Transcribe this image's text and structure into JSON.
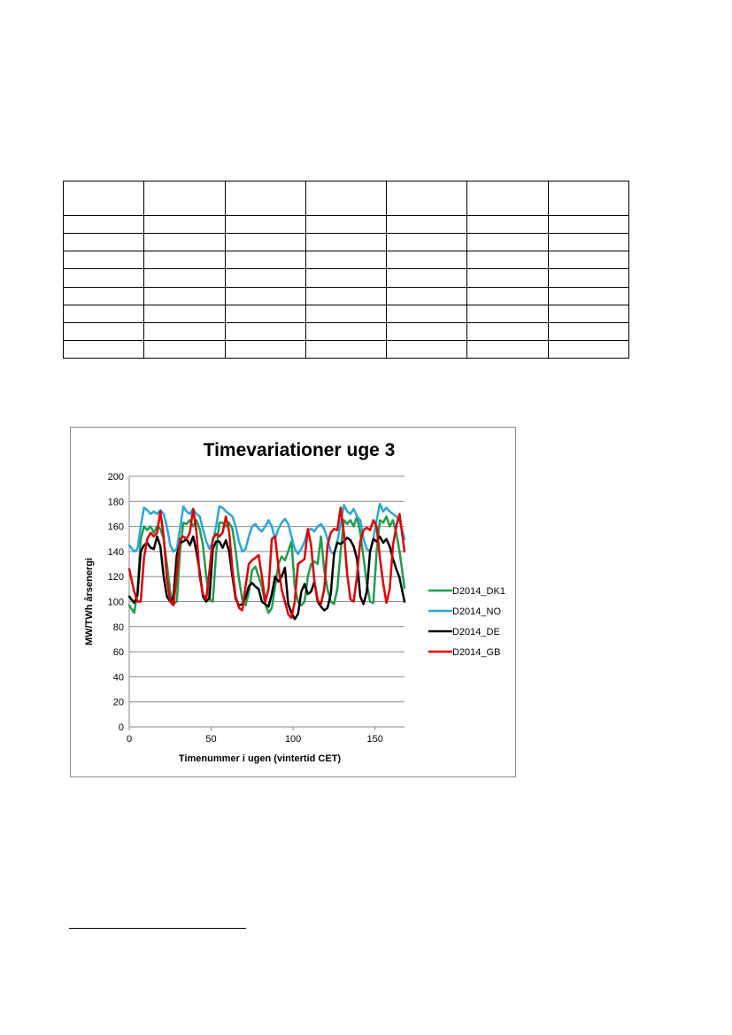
{
  "table": {
    "columns": 7,
    "body_rows": 8
  },
  "chart_data": {
    "type": "line",
    "title": "Timevariationer uge 3",
    "xlabel": "Timenummer i ugen (vintertid CET)",
    "ylabel": "MW/TWh årsenergi",
    "xlim": [
      0,
      168
    ],
    "ylim": [
      0,
      200
    ],
    "xticks": [
      0,
      50,
      100,
      150
    ],
    "yticks": [
      0,
      20,
      40,
      60,
      80,
      100,
      120,
      140,
      160,
      180,
      200
    ],
    "grid": "horizontal",
    "legend_position": "right",
    "series": [
      {
        "name": "D2014_DK1",
        "color": "#1e9e4a",
        "x": [
          0,
          3,
          5,
          7,
          9,
          11,
          13,
          15,
          17,
          19,
          21,
          23,
          25,
          27,
          29,
          31,
          33,
          35,
          37,
          39,
          41,
          43,
          45,
          47,
          49,
          51,
          53,
          55,
          57,
          59,
          61,
          63,
          65,
          67,
          69,
          71,
          73,
          75,
          77,
          79,
          81,
          83,
          85,
          87,
          89,
          91,
          93,
          95,
          97,
          99,
          101,
          103,
          105,
          107,
          109,
          111,
          113,
          115,
          117,
          119,
          121,
          123,
          125,
          127,
          129,
          131,
          133,
          135,
          137,
          139,
          141,
          143,
          145,
          147,
          149,
          151,
          153,
          155,
          157,
          159,
          161,
          163,
          165,
          168
        ],
        "y": [
          97,
          91,
          108,
          150,
          160,
          157,
          160,
          155,
          160,
          158,
          150,
          130,
          108,
          98,
          100,
          140,
          163,
          162,
          165,
          160,
          165,
          158,
          145,
          120,
          102,
          100,
          138,
          163,
          163,
          160,
          163,
          158,
          140,
          118,
          102,
          97,
          107,
          125,
          128,
          120,
          112,
          98,
          91,
          95,
          112,
          130,
          136,
          133,
          140,
          148,
          112,
          100,
          97,
          100,
          120,
          130,
          132,
          130,
          152,
          125,
          110,
          100,
          98,
          110,
          140,
          165,
          162,
          165,
          160,
          168,
          155,
          135,
          115,
          100,
          99,
          140,
          165,
          163,
          168,
          160,
          165,
          155,
          140,
          111
        ]
      },
      {
        "name": "D2014_NO",
        "color": "#2aa6dc",
        "x": [
          0,
          3,
          5,
          7,
          9,
          11,
          13,
          15,
          17,
          19,
          21,
          23,
          25,
          27,
          29,
          31,
          33,
          35,
          37,
          39,
          41,
          43,
          45,
          47,
          49,
          51,
          53,
          55,
          57,
          59,
          61,
          63,
          65,
          67,
          69,
          71,
          73,
          75,
          77,
          79,
          81,
          83,
          85,
          87,
          89,
          91,
          93,
          95,
          97,
          99,
          101,
          103,
          105,
          107,
          109,
          111,
          113,
          115,
          117,
          119,
          121,
          123,
          125,
          127,
          129,
          131,
          133,
          135,
          137,
          139,
          141,
          143,
          145,
          147,
          149,
          151,
          153,
          155,
          157,
          159,
          161,
          163,
          165,
          168
        ],
        "y": [
          145,
          140,
          142,
          160,
          175,
          173,
          170,
          172,
          170,
          173,
          170,
          160,
          145,
          140,
          142,
          158,
          176,
          172,
          170,
          174,
          170,
          168,
          158,
          148,
          142,
          148,
          160,
          176,
          175,
          172,
          170,
          168,
          160,
          148,
          140,
          142,
          152,
          160,
          162,
          158,
          156,
          160,
          165,
          160,
          150,
          158,
          163,
          166,
          162,
          152,
          142,
          138,
          142,
          148,
          157,
          158,
          156,
          160,
          162,
          158,
          150,
          140,
          138,
          148,
          162,
          177,
          172,
          170,
          174,
          168,
          165,
          150,
          142,
          140,
          150,
          165,
          178,
          172,
          175,
          172,
          170,
          168,
          165,
          150
        ]
      },
      {
        "name": "D2014_DE",
        "color": "#000000",
        "x": [
          0,
          3,
          5,
          7,
          9,
          11,
          13,
          15,
          17,
          19,
          21,
          23,
          25,
          27,
          29,
          31,
          33,
          35,
          37,
          39,
          41,
          43,
          45,
          47,
          49,
          51,
          53,
          55,
          57,
          59,
          61,
          63,
          65,
          67,
          69,
          71,
          73,
          75,
          77,
          79,
          81,
          83,
          85,
          87,
          89,
          91,
          93,
          95,
          97,
          99,
          101,
          103,
          105,
          107,
          109,
          111,
          113,
          115,
          117,
          119,
          121,
          123,
          125,
          127,
          129,
          131,
          133,
          135,
          137,
          139,
          141,
          143,
          145,
          147,
          149,
          151,
          153,
          155,
          157,
          159,
          161,
          163,
          165,
          168
        ],
        "y": [
          104,
          99,
          105,
          140,
          145,
          147,
          143,
          142,
          152,
          144,
          120,
          104,
          100,
          104,
          137,
          147,
          148,
          150,
          145,
          152,
          140,
          124,
          104,
          100,
          103,
          142,
          148,
          148,
          143,
          149,
          140,
          120,
          102,
          97,
          98,
          103,
          112,
          115,
          112,
          110,
          100,
          98,
          96,
          106,
          120,
          116,
          120,
          127,
          98,
          91,
          86,
          90,
          108,
          114,
          106,
          108,
          116,
          100,
          96,
          93,
          95,
          106,
          138,
          147,
          146,
          148,
          151,
          149,
          144,
          134,
          104,
          98,
          108,
          140,
          150,
          148,
          152,
          147,
          150,
          144,
          134,
          126,
          119,
          100
        ]
      },
      {
        "name": "D2014_GB",
        "color": "#e00000",
        "x": [
          0,
          3,
          5,
          7,
          9,
          11,
          13,
          15,
          17,
          19,
          21,
          23,
          25,
          27,
          29,
          31,
          33,
          35,
          37,
          39,
          41,
          43,
          45,
          47,
          49,
          51,
          53,
          55,
          57,
          59,
          61,
          63,
          65,
          67,
          69,
          71,
          73,
          75,
          77,
          79,
          81,
          83,
          85,
          87,
          89,
          91,
          93,
          95,
          97,
          99,
          101,
          103,
          105,
          107,
          109,
          111,
          113,
          115,
          117,
          119,
          121,
          123,
          125,
          127,
          129,
          131,
          133,
          135,
          137,
          139,
          141,
          143,
          145,
          147,
          149,
          151,
          153,
          155,
          157,
          159,
          161,
          163,
          165,
          168
        ],
        "y": [
          126,
          108,
          100,
          100,
          135,
          150,
          155,
          152,
          155,
          172,
          152,
          118,
          100,
          97,
          122,
          150,
          152,
          150,
          155,
          174,
          156,
          120,
          106,
          102,
          125,
          150,
          154,
          152,
          155,
          168,
          156,
          125,
          104,
          95,
          93,
          112,
          130,
          133,
          135,
          137,
          120,
          100,
          110,
          150,
          152,
          128,
          110,
          100,
          90,
          87,
          100,
          130,
          132,
          134,
          158,
          145,
          116,
          101,
          98,
          110,
          145,
          155,
          158,
          157,
          175,
          155,
          122,
          102,
          100,
          120,
          148,
          157,
          159,
          157,
          165,
          160,
          135,
          115,
          99,
          110,
          145,
          160,
          170,
          140
        ]
      }
    ]
  }
}
